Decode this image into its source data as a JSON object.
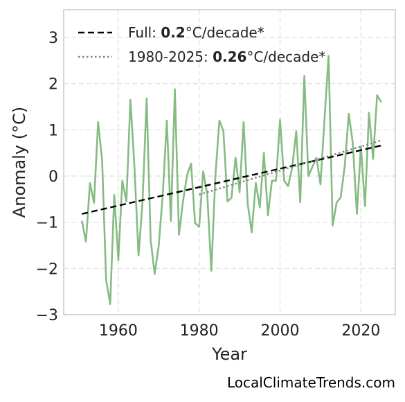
{
  "chart_data": {
    "type": "line",
    "xlabel": "Year",
    "ylabel": "Anomaly (°C)",
    "xlim": [
      1946.5,
      2028.5
    ],
    "ylim": [
      -3,
      3.6
    ],
    "xticks": [
      1960,
      1980,
      2000,
      2020
    ],
    "yticks": [
      -3,
      -2,
      -1,
      0,
      1,
      2,
      3
    ],
    "xtick_labels": [
      "1960",
      "1980",
      "2000",
      "2020"
    ],
    "ytick_labels": [
      "−3",
      "−2",
      "−1",
      "0",
      "1",
      "2",
      "3"
    ],
    "grid": true,
    "legend_position": "top-left",
    "series": [
      {
        "style": "solid",
        "color": "#86bb82",
        "x": [
          1951,
          1952,
          1953,
          1954,
          1955,
          1956,
          1957,
          1958,
          1959,
          1960,
          1961,
          1962,
          1963,
          1964,
          1965,
          1966,
          1967,
          1968,
          1969,
          1970,
          1971,
          1972,
          1973,
          1974,
          1975,
          1976,
          1977,
          1978,
          1979,
          1980,
          1981,
          1982,
          1983,
          1984,
          1985,
          1986,
          1987,
          1988,
          1989,
          1990,
          1991,
          1992,
          1993,
          1994,
          1995,
          1996,
          1997,
          1998,
          1999,
          2000,
          2001,
          2002,
          2003,
          2004,
          2005,
          2006,
          2007,
          2008,
          2009,
          2010,
          2011,
          2012,
          2013,
          2014,
          2015,
          2016,
          2017,
          2018,
          2019,
          2020,
          2021,
          2022,
          2023,
          2024,
          2025
        ],
        "y": [
          -0.97,
          -1.42,
          -0.15,
          -0.58,
          1.17,
          0.35,
          -2.25,
          -2.77,
          -0.41,
          -1.82,
          -0.1,
          -0.55,
          1.65,
          0.2,
          -1.72,
          -0.55,
          1.68,
          -1.38,
          -2.12,
          -1.5,
          -0.4,
          1.2,
          -0.97,
          1.88,
          -1.27,
          -0.55,
          0.02,
          0.27,
          -1.02,
          -1.1,
          0.1,
          -0.4,
          -2.05,
          0.0,
          1.2,
          0.97,
          -0.55,
          -0.47,
          0.4,
          -0.35,
          1.17,
          -0.6,
          -1.22,
          -0.15,
          -0.68,
          0.5,
          -0.85,
          -0.1,
          -0.1,
          1.22,
          -0.1,
          -0.22,
          0.18,
          0.97,
          -0.57,
          2.17,
          0.0,
          0.2,
          0.4,
          -0.18,
          1.25,
          2.6,
          -1.07,
          -0.57,
          -0.46,
          0.22,
          1.35,
          0.7,
          -0.82,
          0.65,
          -0.65,
          1.37,
          0.37,
          1.75,
          1.6
        ]
      },
      {
        "name": "Full: ",
        "value_label": "0.2",
        "unit": "°C/decade*",
        "style": "dashed",
        "color": "#000000",
        "x": [
          1951,
          2025
        ],
        "y": [
          -0.82,
          0.66
        ]
      },
      {
        "name": "1980-2025: ",
        "value_label": "0.26",
        "unit": "°C/decade*",
        "style": "dotted",
        "color": "#808080",
        "x": [
          1980,
          2025
        ],
        "y": [
          -0.4,
          0.77
        ]
      }
    ]
  },
  "credit": "LocalClimateTrends.com"
}
